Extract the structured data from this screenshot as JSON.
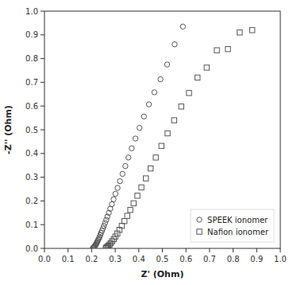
{
  "chart_data": {
    "type": "scatter",
    "xlabel": "Z' (Ohm)",
    "ylabel": "-Z'' (Ohm)",
    "xlim": [
      0.0,
      1.0
    ],
    "ylim": [
      0.0,
      1.0
    ],
    "xticks": [
      {
        "value": 0.0,
        "label": "0.0"
      },
      0.1,
      0.2,
      0.3,
      0.4,
      0.5,
      0.6,
      0.7,
      0.8,
      0.9,
      {
        "value": 1.0,
        "label": "1.0"
      }
    ],
    "yticks": [
      {
        "value": 0.0,
        "label": "0.0"
      },
      0.1,
      0.2,
      0.3,
      0.4,
      0.5,
      0.6,
      0.7,
      0.8,
      0.9,
      {
        "value": 1.0,
        "label": "1.0"
      }
    ],
    "grid": false,
    "legend": "lower right",
    "series": [
      {
        "name": "SPEEK ionomer",
        "color": "#555555",
        "marker": "circle",
        "x": [
          0.205,
          0.207,
          0.209,
          0.211,
          0.213,
          0.215,
          0.217,
          0.219,
          0.221,
          0.223,
          0.225,
          0.228,
          0.231,
          0.234,
          0.237,
          0.24,
          0.244,
          0.248,
          0.252,
          0.257,
          0.262,
          0.267,
          0.273,
          0.279,
          0.286,
          0.293,
          0.301,
          0.31,
          0.32,
          0.331,
          0.343,
          0.356,
          0.37,
          0.386,
          0.403,
          0.422,
          0.443,
          0.466,
          0.492,
          0.52,
          0.552,
          0.587
        ],
        "values": [
          0.001,
          0.003,
          0.005,
          0.007,
          0.009,
          0.012,
          0.015,
          0.018,
          0.022,
          0.026,
          0.031,
          0.036,
          0.042,
          0.049,
          0.057,
          0.065,
          0.074,
          0.084,
          0.095,
          0.107,
          0.12,
          0.134,
          0.15,
          0.167,
          0.186,
          0.207,
          0.23,
          0.255,
          0.283,
          0.314,
          0.347,
          0.383,
          0.422,
          0.463,
          0.508,
          0.556,
          0.607,
          0.658,
          0.713,
          0.775,
          0.86,
          0.935
        ]
      },
      {
        "name": "Nafion ionomer",
        "color": "#555555",
        "marker": "square",
        "x": [
          0.26,
          0.263,
          0.267,
          0.271,
          0.276,
          0.281,
          0.287,
          0.294,
          0.301,
          0.309,
          0.318,
          0.328,
          0.339,
          0.351,
          0.364,
          0.378,
          0.394,
          0.411,
          0.43,
          0.45,
          0.472,
          0.496,
          0.522,
          0.55,
          0.58,
          0.613,
          0.649,
          0.688,
          0.731,
          0.778,
          0.828,
          0.881
        ],
        "values": [
          0.001,
          0.004,
          0.007,
          0.011,
          0.016,
          0.022,
          0.03,
          0.039,
          0.05,
          0.063,
          0.078,
          0.095,
          0.115,
          0.137,
          0.162,
          0.19,
          0.222,
          0.257,
          0.295,
          0.337,
          0.383,
          0.432,
          0.485,
          0.54,
          0.598,
          0.655,
          0.72,
          0.762,
          0.835,
          0.84,
          0.91,
          0.92
        ]
      }
    ]
  }
}
